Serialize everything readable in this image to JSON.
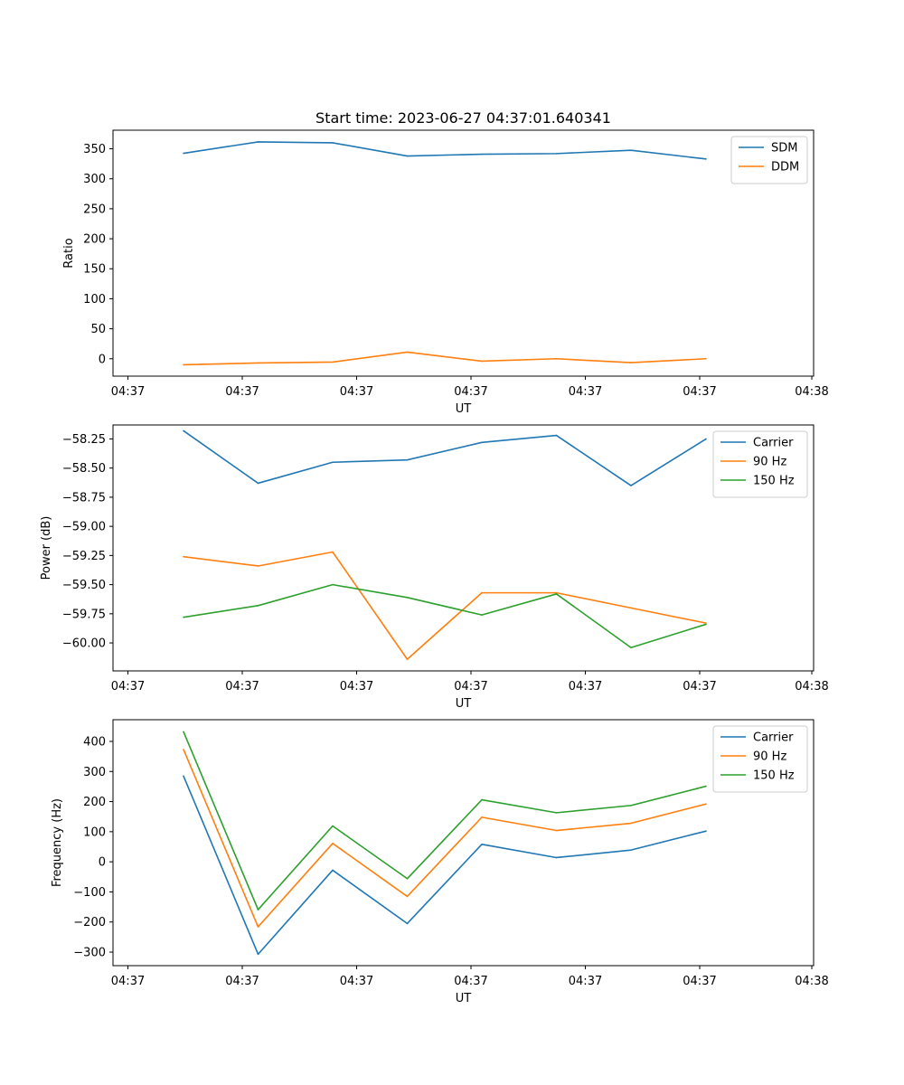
{
  "figure_title": "Start time: 2023-06-27 04:37:01.640341",
  "chart_data": [
    {
      "type": "line",
      "title": "Start time: 2023-06-27 04:37:01.640341",
      "xlabel": "UT",
      "ylabel": "Ratio",
      "x_tick_labels": [
        "04:37",
        "04:37",
        "04:37",
        "04:37",
        "04:37",
        "04:37",
        "04:38"
      ],
      "y_ticks": [
        0,
        50,
        100,
        150,
        200,
        250,
        300,
        350
      ],
      "y_tick_labels": [
        "0",
        "50",
        "100",
        "150",
        "200",
        "250",
        "300",
        "350"
      ],
      "ylim": [
        -29,
        381
      ],
      "grid": false,
      "legend_position": "upper right",
      "series": [
        {
          "name": "SDM",
          "color": "#1f77b4",
          "values": [
            342.5,
            361.5,
            360.0,
            338.0,
            341.0,
            342.0,
            347.5,
            333.0
          ]
        },
        {
          "name": "DDM",
          "color": "#ff7f0e",
          "values": [
            -10.0,
            -7.0,
            -5.5,
            11.0,
            -4.0,
            0.0,
            -6.5,
            0.0
          ]
        }
      ]
    },
    {
      "type": "line",
      "title": "",
      "xlabel": "UT",
      "ylabel": "Power (dB)",
      "x_tick_labels": [
        "04:37",
        "04:37",
        "04:37",
        "04:37",
        "04:37",
        "04:37",
        "04:38"
      ],
      "y_ticks": [
        -60.0,
        -59.75,
        -59.5,
        -59.25,
        -59.0,
        -58.75,
        -58.5,
        -58.25
      ],
      "y_tick_labels": [
        "−60.00",
        "−59.75",
        "−59.50",
        "−59.25",
        "−59.00",
        "−58.75",
        "−58.50",
        "−58.25"
      ],
      "ylim": [
        -60.24,
        -58.13
      ],
      "grid": false,
      "legend_position": "upper right",
      "series": [
        {
          "name": "Carrier",
          "color": "#1f77b4",
          "values": [
            -58.18,
            -58.63,
            -58.45,
            -58.43,
            -58.28,
            -58.22,
            -58.65,
            -58.25
          ]
        },
        {
          "name": "90 Hz",
          "color": "#ff7f0e",
          "values": [
            -59.26,
            -59.34,
            -59.22,
            -60.14,
            -59.57,
            -59.57,
            -59.7,
            -59.83
          ]
        },
        {
          "name": "150 Hz",
          "color": "#2ca02c",
          "values": [
            -59.78,
            -59.68,
            -59.5,
            -59.61,
            -59.76,
            -59.58,
            -60.04,
            -59.84
          ]
        }
      ]
    },
    {
      "type": "line",
      "title": "",
      "xlabel": "UT",
      "ylabel": "Frequency (Hz)",
      "x_tick_labels": [
        "04:37",
        "04:37",
        "04:37",
        "04:37",
        "04:37",
        "04:37",
        "04:38"
      ],
      "y_ticks": [
        -300,
        -200,
        -100,
        0,
        100,
        200,
        300,
        400
      ],
      "y_tick_labels": [
        "−300",
        "−200",
        "−100",
        "0",
        "100",
        "200",
        "300",
        "400"
      ],
      "ylim": [
        -345,
        472
      ],
      "grid": false,
      "legend_position": "upper right",
      "series": [
        {
          "name": "Carrier",
          "color": "#1f77b4",
          "values": [
            285,
            -307,
            -28,
            -205,
            58,
            14,
            39,
            102
          ]
        },
        {
          "name": "90 Hz",
          "color": "#ff7f0e",
          "values": [
            373,
            -216,
            61,
            -115,
            148,
            104,
            128,
            192
          ]
        },
        {
          "name": "150 Hz",
          "color": "#2ca02c",
          "values": [
            432,
            -159,
            119,
            -56,
            206,
            163,
            187,
            251
          ]
        }
      ]
    }
  ]
}
